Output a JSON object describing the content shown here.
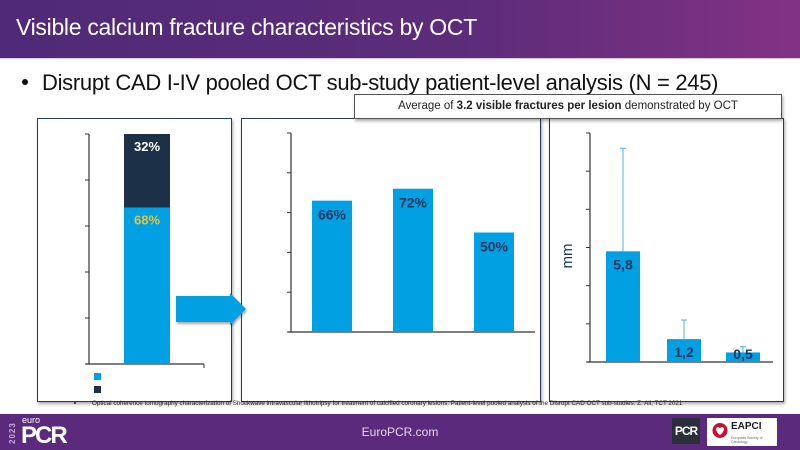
{
  "header": {
    "title": "Visible calcium fracture characteristics by OCT"
  },
  "bullet": {
    "text": "Disrupt CAD I-IV pooled OCT sub-study patient-level analysis (N = 245)"
  },
  "callout": {
    "prefix": "Average of ",
    "bold": "3.2 visible fractures per lesion",
    "suffix": " demonstrated by OCT"
  },
  "colors": {
    "bar_blue": "#00a0e3",
    "bar_dark": "#1c3048",
    "label_dark": "#1b3760",
    "label_white": "#ffffff",
    "label_gold": "#e7c33a",
    "error_bar": "#4fb3e0",
    "header_purple": "#5b2a7c"
  },
  "chart_data": [
    {
      "type": "bar",
      "stacked": true,
      "title": "",
      "xlabel": "",
      "ylabel": "",
      "ylim": [
        0,
        100
      ],
      "tick_count": 5,
      "categories": [
        ""
      ],
      "series": [
        {
          "name": "",
          "color": "#00a0e3",
          "values": [
            68
          ],
          "label": "68%"
        },
        {
          "name": "",
          "color": "#1c3048",
          "values": [
            32
          ],
          "label": "32%"
        }
      ],
      "legend": "bottom-left",
      "grid": false
    },
    {
      "type": "bar",
      "title": "",
      "xlabel": "",
      "ylabel": "",
      "ylim": [
        0,
        100
      ],
      "tick_count": 5,
      "categories": [
        "",
        "",
        ""
      ],
      "values": [
        66,
        72,
        50
      ],
      "labels": [
        "66%",
        "72%",
        "50%"
      ],
      "grid": false
    },
    {
      "type": "bar",
      "title": "",
      "xlabel": "",
      "ylabel": "mm",
      "ylim": [
        0,
        12
      ],
      "tick_count": 6,
      "categories": [
        "",
        "",
        ""
      ],
      "values": [
        5.8,
        1.2,
        0.5
      ],
      "labels": [
        "5,8",
        "1,2",
        "0,5"
      ],
      "error_upper": [
        11.2,
        2.2,
        0.8
      ],
      "grid": false
    }
  ],
  "footnote": {
    "text": "Optical coherence tomography characterization of Shockwave intravascular lithotripsy for treatment of calcified coronary lesions: Patient-level pooled analysis of the Disrupt CAD OCT sub-studies. Z. Ali, TCT 2021"
  },
  "footer": {
    "site": "EuroPCR.com",
    "logo_year": "2023",
    "logo_euro": "euro",
    "logo_pcr": "PCR",
    "logo_small_pcr": "PCR",
    "logo_eapci": "EAPCI",
    "logo_eapci_sub": "European Society of Cardiology"
  }
}
